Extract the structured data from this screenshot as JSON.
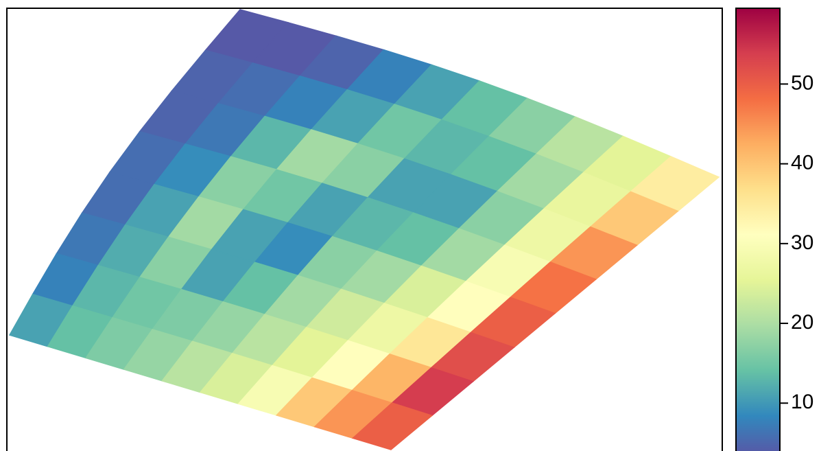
{
  "chart_data": {
    "type": "heatmap",
    "values": [
      [
        5,
        5,
        6,
        9,
        12,
        15,
        18,
        22,
        26,
        35
      ],
      [
        6,
        7,
        9,
        12,
        16,
        14,
        15,
        20,
        27,
        40
      ],
      [
        6,
        8,
        14,
        20,
        18,
        12,
        12,
        18,
        28,
        45
      ],
      [
        7,
        10,
        18,
        16,
        12,
        14,
        15,
        20,
        30,
        48
      ],
      [
        7,
        12,
        20,
        12,
        10,
        18,
        20,
        25,
        32,
        50
      ],
      [
        8,
        13,
        18,
        12,
        15,
        20,
        24,
        28,
        36,
        52
      ],
      [
        9,
        14,
        16,
        17,
        19,
        22,
        26,
        32,
        42,
        54
      ],
      [
        12,
        15,
        17,
        19,
        22,
        25,
        30,
        40,
        45,
        50
      ]
    ],
    "colors": [
      "#5e4fa2",
      "#3288bd",
      "#66c2a5",
      "#abdda4",
      "#e6f598",
      "#ffffbf",
      "#fee08b",
      "#fdae61",
      "#f46d43",
      "#d53e4f",
      "#9e0142"
    ],
    "zlim": [
      4,
      59.5
    ],
    "zticks": [
      10,
      20,
      30,
      40,
      50
    ]
  }
}
